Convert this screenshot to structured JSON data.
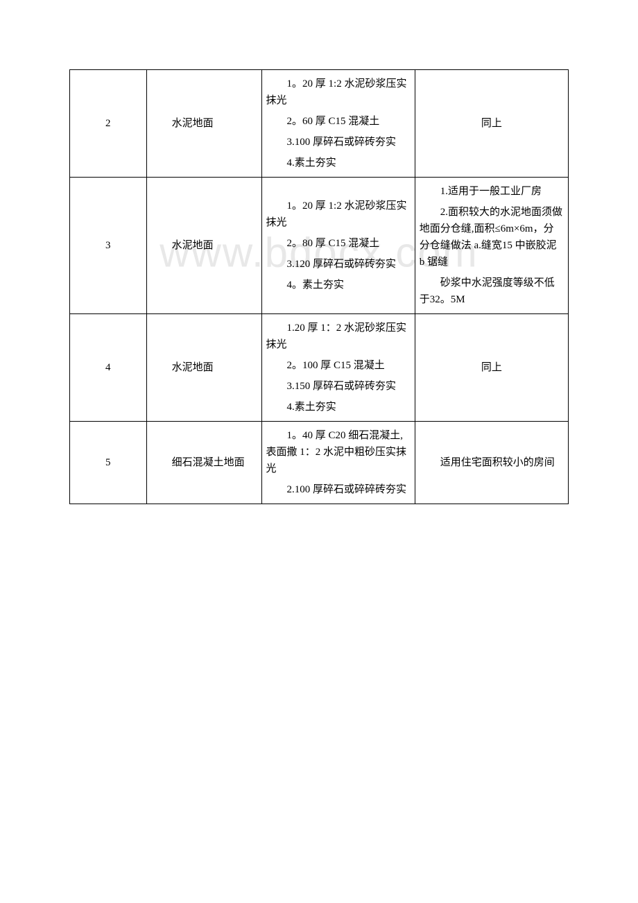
{
  "watermark": "www.bdocx.com",
  "table": {
    "border_color": "#000000",
    "background_color": "#ffffff",
    "text_color": "#000000",
    "font_size": 15,
    "rows": [
      {
        "num": "2",
        "name": "水泥地面",
        "methods": [
          "1。20 厚 1:2 水泥砂浆压实抹光",
          "2。60 厚 C15 混凝土",
          "3.100 厚碎石或碎砖夯实",
          "4.素土夯实"
        ],
        "notes": [
          "同上"
        ]
      },
      {
        "num": "3",
        "name": "水泥地面",
        "methods": [
          "1。20 厚 1:2 水泥砂浆压实抹光",
          "2。80 厚 C15 混凝土",
          "3.120 厚碎石或碎砖夯实",
          "4。素土夯实"
        ],
        "notes": [
          "1.适用于一般工业厂房",
          "2.面积较大的水泥地面须做地面分仓缝,面积≤6m×6m，分分仓缝做法 a.缝宽15 中嵌胶泥 b 锯缝",
          "砂浆中水泥强度等级不低于32。5M"
        ]
      },
      {
        "num": "4",
        "name": "水泥地面",
        "methods": [
          "1.20 厚 1：2 水泥砂浆压实抹光",
          "2。100 厚 C15 混凝土",
          "3.150 厚碎石或碎砖夯实",
          "4.素土夯实"
        ],
        "notes": [
          "同上"
        ]
      },
      {
        "num": "5",
        "name": "细石混凝土地面",
        "methods": [
          "1。40 厚 C20 细石混凝土,表面撒 1：2 水泥中粗砂压实抹光",
          "2.100 厚碎石或碎碎砖夯实"
        ],
        "notes": [
          "适用住宅面积较小的房间"
        ]
      }
    ]
  }
}
